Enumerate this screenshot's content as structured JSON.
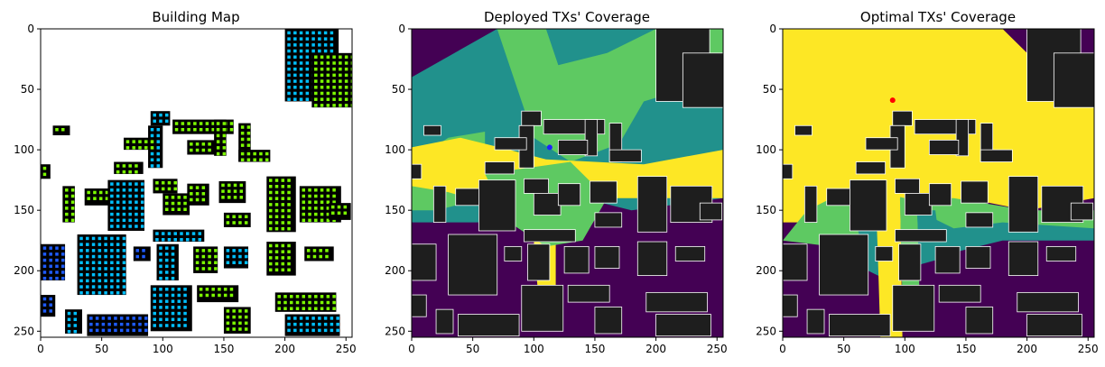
{
  "chart_data": [
    {
      "type": "heatmap",
      "title": "Building Map",
      "x_ticks": [
        0,
        50,
        100,
        150,
        200,
        250
      ],
      "y_ticks": [
        0,
        50,
        100,
        150,
        200,
        250
      ],
      "xlim": [
        0,
        255
      ],
      "ylim": [
        255,
        0
      ],
      "colors": {
        "background": "#ffffff",
        "building": "#000000",
        "window_green": "#7cfc00",
        "window_cyan": "#00bfff",
        "window_blue": "#1e5bff"
      },
      "buildings": [
        [
          90,
          68,
          16,
          12
        ],
        [
          108,
          75,
          50,
          12
        ],
        [
          142,
          75,
          10,
          30
        ],
        [
          162,
          78,
          10,
          32
        ],
        [
          162,
          100,
          26,
          10
        ],
        [
          88,
          80,
          12,
          35
        ],
        [
          68,
          90,
          26,
          10
        ],
        [
          120,
          92,
          24,
          12
        ],
        [
          60,
          110,
          24,
          10
        ],
        [
          10,
          80,
          14,
          8
        ],
        [
          200,
          0,
          44,
          60
        ],
        [
          222,
          20,
          40,
          45
        ],
        [
          0,
          112,
          8,
          12
        ],
        [
          18,
          130,
          10,
          30
        ],
        [
          36,
          132,
          20,
          14
        ],
        [
          55,
          125,
          30,
          42
        ],
        [
          92,
          124,
          20,
          12
        ],
        [
          100,
          136,
          22,
          18
        ],
        [
          120,
          128,
          18,
          18
        ],
        [
          146,
          126,
          22,
          18
        ],
        [
          92,
          166,
          42,
          10
        ],
        [
          150,
          152,
          22,
          12
        ],
        [
          185,
          122,
          24,
          46
        ],
        [
          212,
          130,
          34,
          30
        ],
        [
          236,
          144,
          18,
          14
        ],
        [
          0,
          178,
          20,
          30
        ],
        [
          30,
          170,
          40,
          50
        ],
        [
          76,
          180,
          14,
          12
        ],
        [
          95,
          178,
          18,
          30
        ],
        [
          125,
          180,
          20,
          22
        ],
        [
          150,
          180,
          20,
          18
        ],
        [
          185,
          176,
          24,
          28
        ],
        [
          216,
          180,
          24,
          12
        ],
        [
          0,
          220,
          12,
          18
        ],
        [
          20,
          232,
          14,
          20
        ],
        [
          38,
          236,
          50,
          18
        ],
        [
          90,
          212,
          34,
          38
        ],
        [
          128,
          212,
          34,
          14
        ],
        [
          150,
          230,
          22,
          22
        ],
        [
          192,
          218,
          50,
          16
        ],
        [
          200,
          236,
          45,
          18
        ]
      ]
    },
    {
      "type": "heatmap",
      "title": "Deployed TXs' Coverage",
      "x_ticks": [
        0,
        50,
        100,
        150,
        200,
        250
      ],
      "y_ticks": [
        0,
        50,
        100,
        150,
        200,
        250
      ],
      "xlim": [
        0,
        255
      ],
      "ylim": [
        255,
        0
      ],
      "colors": {
        "none": "#440154",
        "low": "#21918c",
        "mid": "#5ec962",
        "high": "#fde725",
        "building": "#1e1e1e",
        "outline": "#ffffff"
      },
      "tx": {
        "x": 113,
        "y": 98,
        "color": "#1f1fff"
      },
      "regions": [
        {
          "level": "low",
          "points": [
            [
              0,
              40
            ],
            [
              70,
              0
            ],
            [
              255,
              0
            ],
            [
              255,
              140
            ],
            [
              180,
              150
            ],
            [
              140,
              140
            ],
            [
              100,
              150
            ],
            [
              60,
              160
            ],
            [
              0,
              160
            ]
          ]
        },
        {
          "level": "mid",
          "points": [
            [
              70,
              0
            ],
            [
              110,
              0
            ],
            [
              120,
              30
            ],
            [
              160,
              20
            ],
            [
              200,
              0
            ],
            [
              255,
              0
            ],
            [
              255,
              40
            ],
            [
              190,
              60
            ],
            [
              170,
              95
            ],
            [
              130,
              110
            ],
            [
              100,
              90
            ],
            [
              90,
              60
            ]
          ]
        },
        {
          "level": "mid",
          "points": [
            [
              0,
              110
            ],
            [
              30,
              90
            ],
            [
              60,
              85
            ],
            [
              60,
              140
            ],
            [
              20,
              150
            ],
            [
              0,
              150
            ]
          ]
        },
        {
          "level": "high",
          "points": [
            [
              0,
              98
            ],
            [
              40,
              90
            ],
            [
              80,
              100
            ],
            [
              110,
              108
            ],
            [
              150,
              110
            ],
            [
              190,
              112
            ],
            [
              255,
              100
            ],
            [
              255,
              140
            ],
            [
              190,
              140
            ],
            [
              150,
              140
            ],
            [
              120,
              150
            ],
            [
              80,
              150
            ],
            [
              30,
              135
            ],
            [
              0,
              130
            ]
          ]
        },
        {
          "level": "high",
          "points": [
            [
              102,
              140
            ],
            [
              118,
              140
            ],
            [
              118,
              240
            ],
            [
              106,
              245
            ],
            [
              100,
              180
            ]
          ]
        },
        {
          "level": "mid",
          "points": [
            [
              60,
              120
            ],
            [
              130,
              110
            ],
            [
              160,
              140
            ],
            [
              140,
              175
            ],
            [
              110,
              180
            ],
            [
              80,
              160
            ]
          ]
        }
      ]
    },
    {
      "type": "heatmap",
      "title": "Optimal TXs' Coverage",
      "x_ticks": [
        0,
        50,
        100,
        150,
        200,
        250
      ],
      "y_ticks": [
        0,
        50,
        100,
        150,
        200,
        250
      ],
      "xlim": [
        0,
        255
      ],
      "ylim": [
        255,
        0
      ],
      "colors": {
        "none": "#440154",
        "low": "#21918c",
        "mid": "#5ec962",
        "high": "#fde725",
        "building": "#1e1e1e",
        "outline": "#ffffff"
      },
      "tx": {
        "x": 90,
        "y": 59,
        "color": "#ff0000"
      },
      "regions": [
        {
          "level": "high",
          "points": [
            [
              0,
              0
            ],
            [
              180,
              0
            ],
            [
              200,
              20
            ],
            [
              255,
              60
            ],
            [
              255,
              140
            ],
            [
              200,
              150
            ],
            [
              150,
              140
            ],
            [
              100,
              150
            ],
            [
              60,
              160
            ],
            [
              0,
              160
            ]
          ]
        },
        {
          "level": "mid",
          "points": [
            [
              20,
              150
            ],
            [
              60,
              130
            ],
            [
              100,
              140
            ],
            [
              140,
              140
            ],
            [
              200,
              150
            ],
            [
              255,
              150
            ],
            [
              255,
              170
            ],
            [
              190,
              170
            ],
            [
              120,
              175
            ],
            [
              80,
              190
            ],
            [
              40,
              180
            ],
            [
              0,
              175
            ]
          ]
        },
        {
          "level": "low",
          "points": [
            [
              60,
              160
            ],
            [
              90,
              150
            ],
            [
              120,
              155
            ],
            [
              140,
              165
            ],
            [
              180,
              160
            ],
            [
              255,
              165
            ],
            [
              255,
              175
            ],
            [
              180,
              175
            ],
            [
              120,
              190
            ],
            [
              90,
              210
            ],
            [
              70,
              200
            ]
          ]
        },
        {
          "level": "high",
          "points": [
            [
              76,
              130
            ],
            [
              96,
              130
            ],
            [
              98,
              255
            ],
            [
              80,
              255
            ],
            [
              78,
              190
            ]
          ]
        },
        {
          "level": "mid",
          "points": [
            [
              96,
              140
            ],
            [
              110,
              140
            ],
            [
              112,
              220
            ],
            [
              98,
              225
            ]
          ]
        },
        {
          "level": "low",
          "points": [
            [
              110,
              150
            ],
            [
              125,
              150
            ],
            [
              130,
              190
            ],
            [
              112,
              195
            ]
          ]
        }
      ]
    }
  ]
}
